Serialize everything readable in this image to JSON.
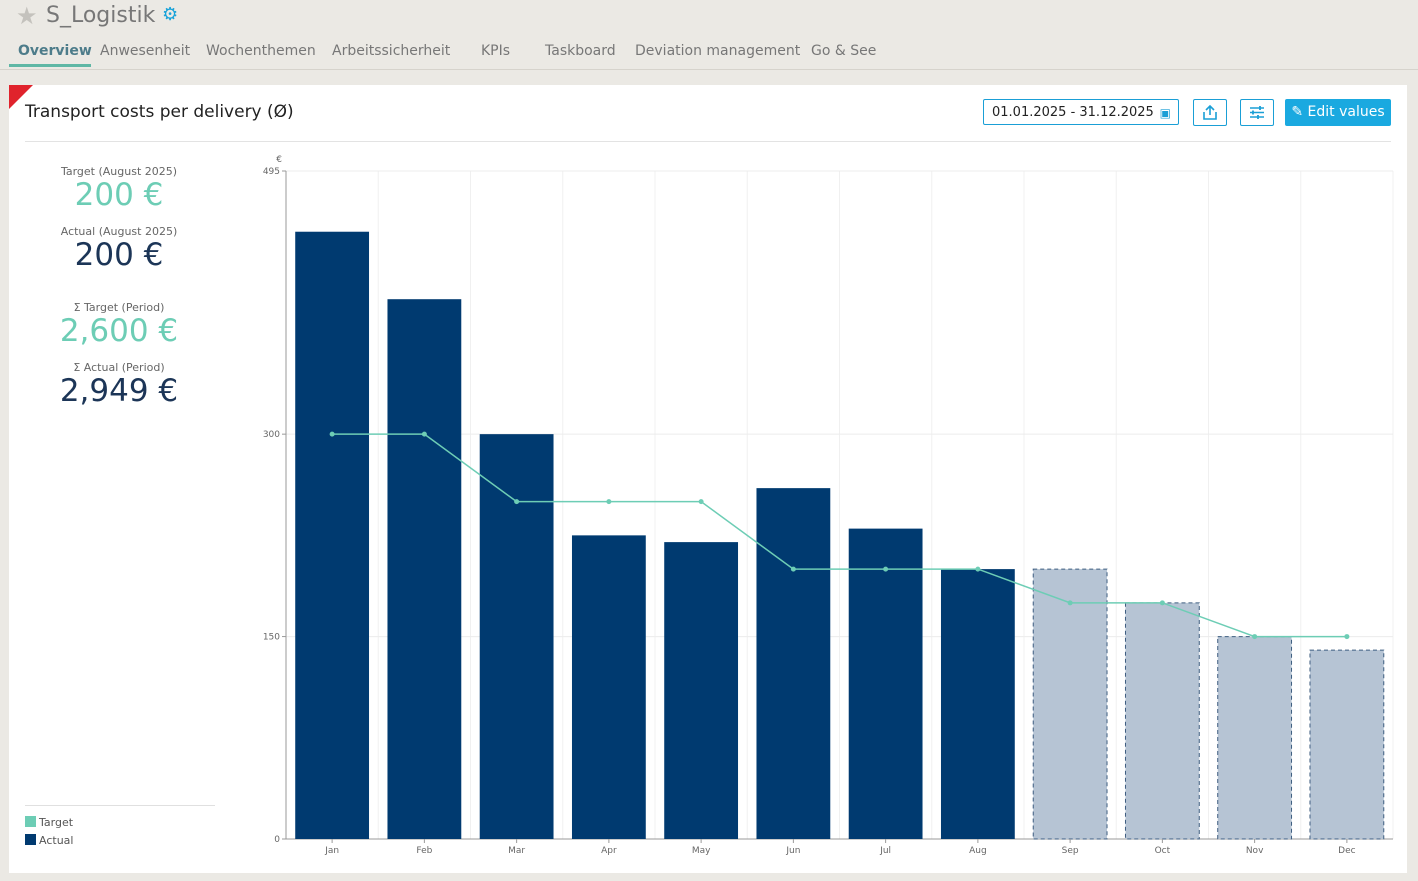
{
  "header": {
    "title": "S_Logistik",
    "star_icon": "star-icon",
    "settings_icon": "gear-icon"
  },
  "tabs": [
    {
      "label": "Overview",
      "active": true
    },
    {
      "label": "Anwesenheit"
    },
    {
      "label": "Wochenthemen"
    },
    {
      "label": "Arbeitssicherheit"
    },
    {
      "label": "KPIs"
    },
    {
      "label": "Taskboard"
    },
    {
      "label": "Deviation management"
    },
    {
      "label": "Go & See"
    }
  ],
  "panel": {
    "title": "Transport costs per delivery (Ø)",
    "date_range": "01.01.2025 - 31.12.2025",
    "edit_label": "Edit values"
  },
  "kpis": {
    "target_month_label": "Target (August 2025)",
    "target_month_value": "200 €",
    "actual_month_label": "Actual (August 2025)",
    "actual_month_value": "200 €",
    "target_period_label": "Σ Target (Period)",
    "target_period_value": "2,600 €",
    "actual_period_label": "Σ Actual (Period)",
    "actual_period_value": "2,949 €"
  },
  "legend": {
    "target": "Target",
    "actual": "Actual"
  },
  "colors": {
    "target": "#6dcdb5",
    "actual": "#003a70",
    "forecast": "#b6c4d4",
    "accent": "#1aa9e0"
  },
  "chart_data": {
    "type": "bar",
    "categories": [
      "Jan",
      "Feb",
      "Mar",
      "Apr",
      "May",
      "Jun",
      "Jul",
      "Aug",
      "Sep",
      "Oct",
      "Nov",
      "Dec"
    ],
    "series": [
      {
        "name": "Actual",
        "type": "bar",
        "values": [
          450,
          400,
          300,
          225,
          220,
          260,
          230,
          200,
          null,
          null,
          null,
          null
        ]
      },
      {
        "name": "Target",
        "type": "line",
        "values": [
          300,
          300,
          250,
          250,
          250,
          200,
          200,
          200,
          175,
          175,
          150,
          150
        ]
      }
    ],
    "forecast_values": [
      null,
      null,
      null,
      null,
      null,
      null,
      null,
      null,
      200,
      175,
      150,
      140
    ],
    "ylabel": "€",
    "yticks": [
      0,
      150,
      300,
      495
    ],
    "ylim": [
      0,
      495
    ],
    "grid": true
  }
}
